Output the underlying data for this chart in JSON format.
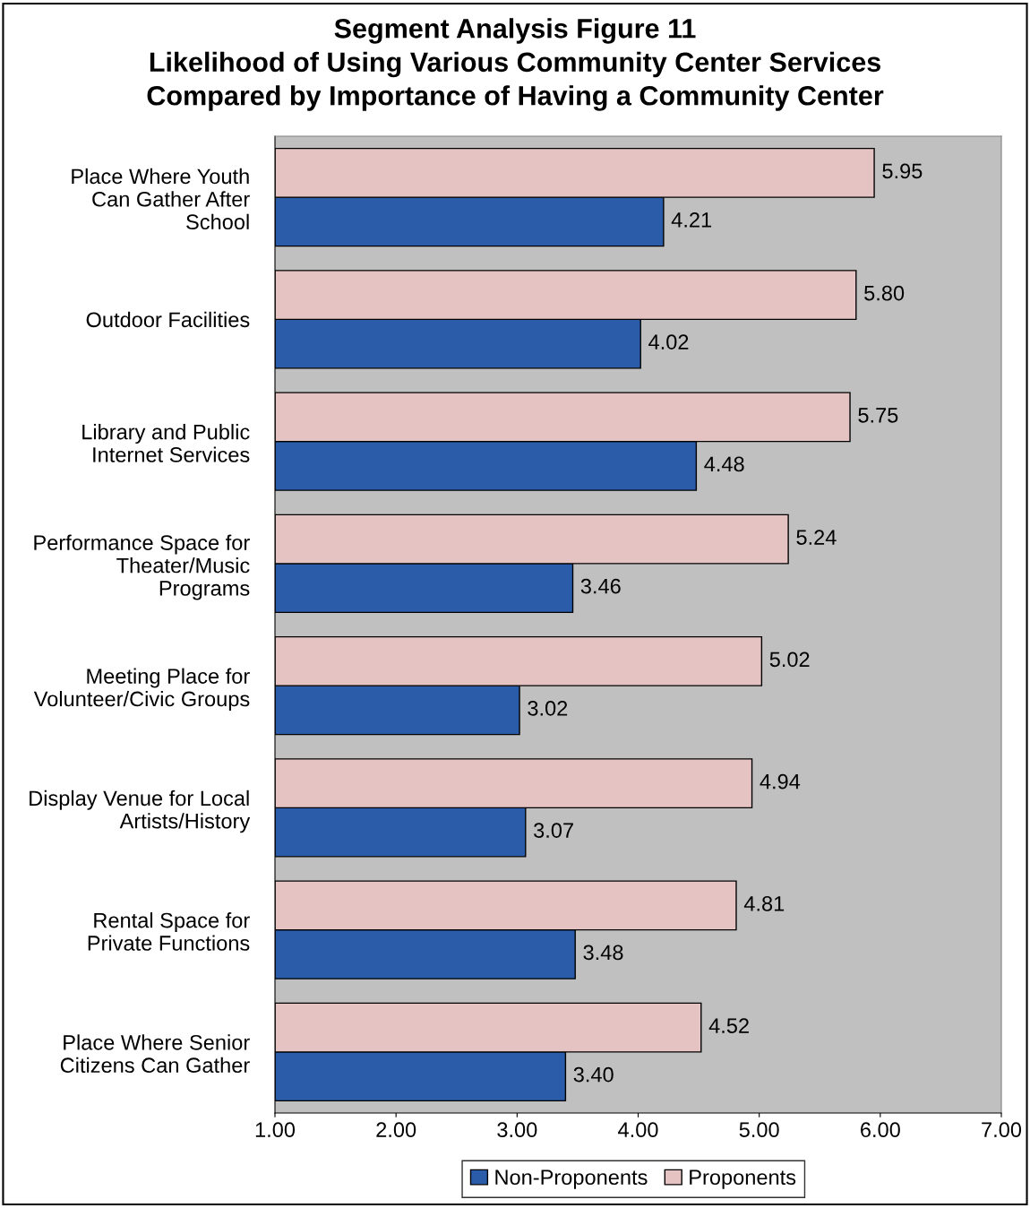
{
  "chart_data": {
    "type": "bar",
    "orientation": "horizontal",
    "title": "Segment Analysis Figure 11\nLikelihood of Using Various Community Center Services\nCompared by Importance of Having a Community Center",
    "categories": [
      "Place Where Youth\nCan Gather After\nSchool",
      "Outdoor Facilities",
      "Library and Public\nInternet Services",
      "Performance Space for\nTheater/Music\nPrograms",
      "Meeting Place for\nVolunteer/Civic Groups",
      "Display Venue for Local\nArtists/History",
      "Rental Space for\nPrivate Functions",
      "Place Where Senior\nCitizens Can Gather"
    ],
    "series": [
      {
        "name": "Non-Proponents",
        "color": "#2a5caa",
        "values": [
          4.21,
          4.02,
          4.48,
          3.46,
          3.02,
          3.07,
          3.48,
          3.4
        ],
        "value_labels": [
          "4.21",
          "4.02",
          "4.48",
          "3.46",
          "3.02",
          "3.07",
          "3.48",
          "3.40"
        ]
      },
      {
        "name": "Proponents",
        "color": "#e6c3c3",
        "values": [
          5.95,
          5.8,
          5.75,
          5.24,
          5.02,
          4.94,
          4.81,
          4.52
        ],
        "value_labels": [
          "5.95",
          "5.80",
          "5.75",
          "5.24",
          "5.02",
          "4.94",
          "4.81",
          "4.52"
        ]
      }
    ],
    "xlim": [
      1,
      7
    ],
    "xticks": [
      {
        "value": 1,
        "label": "1.00"
      },
      {
        "value": 2,
        "label": "2.00"
      },
      {
        "value": 3,
        "label": "3.00"
      },
      {
        "value": 4,
        "label": "4.00"
      },
      {
        "value": 5,
        "label": "5.00"
      },
      {
        "value": 6,
        "label": "6.00"
      },
      {
        "value": 7,
        "label": "7.00"
      }
    ],
    "grid": false,
    "legend": "bottom"
  }
}
